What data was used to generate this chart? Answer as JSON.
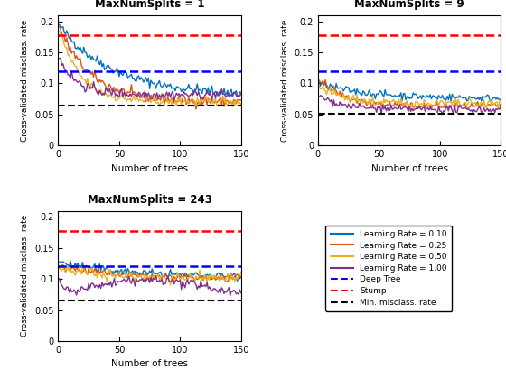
{
  "titles": [
    "MaxNumSplits = 1",
    "MaxNumSplits = 9",
    "MaxNumSplits = 243"
  ],
  "xlabel": "Number of trees",
  "ylabel": "Cross-validated misclass. rate",
  "ylim": [
    0,
    0.21
  ],
  "yticks": [
    0,
    0.05,
    0.1,
    0.15,
    0.2
  ],
  "yticklabels": [
    "0",
    "0.05",
    "0.1",
    "0.15",
    "0.2"
  ],
  "xlim": [
    1,
    150
  ],
  "xticks": [
    0,
    50,
    100,
    150
  ],
  "n_trees": 150,
  "stump_val": 0.178,
  "deep_tree_vals": [
    0.12,
    0.12,
    0.12
  ],
  "min_misclass_vals": [
    0.065,
    0.052,
    0.065
  ],
  "line_colors": {
    "lr010": "#0072BD",
    "lr025": "#D95319",
    "lr050": "#EDB120",
    "lr100": "#7E2F8E",
    "deep_tree": "#0000FF",
    "stump": "#FF0000",
    "min_misclass": "#000000"
  },
  "legend_labels": [
    "Learning Rate = 0.10",
    "Learning Rate = 0.25",
    "Learning Rate = 0.50",
    "Learning Rate = 1.00",
    "Deep Tree",
    "Stump",
    "Min. misclass. rate"
  ],
  "random_seed": 42
}
